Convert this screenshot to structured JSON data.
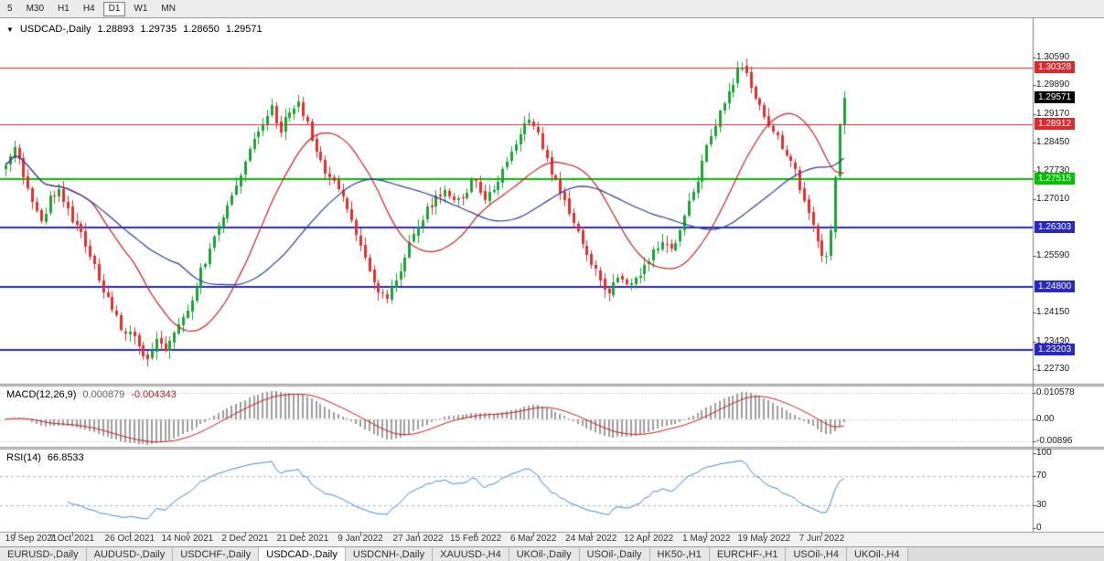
{
  "toolbar": {
    "timeframes": [
      {
        "label": "5",
        "active": false
      },
      {
        "label": "M30",
        "active": false
      },
      {
        "label": "H1",
        "active": false
      },
      {
        "label": "H4",
        "active": false
      },
      {
        "label": "D1",
        "active": true
      },
      {
        "label": "W1",
        "active": false
      },
      {
        "label": "MN",
        "active": false
      }
    ]
  },
  "chart": {
    "dropdown_icon": "▼",
    "title": {
      "symbol": "USDCAD-,Daily",
      "open": "1.28893",
      "high": "1.29735",
      "low": "1.28650",
      "close": "1.29571"
    },
    "price_axis_labels": [
      "1.30590",
      "1.29890",
      "1.29170",
      "1.28450",
      "1.27730",
      "1.27010",
      "1.25590",
      "1.24150",
      "1.23430",
      "1.22730"
    ],
    "levels": [
      {
        "price": 1.30328,
        "label": "1.30328",
        "color": "#d92b2b",
        "line_width": 1
      },
      {
        "price": 1.28912,
        "label": "1.28912",
        "color": "#d92b2b",
        "line_width": 1
      },
      {
        "price": 1.27515,
        "label": "1.27515",
        "color": "#00c300",
        "line_width": 2
      },
      {
        "price": 1.26303,
        "label": "1.26303",
        "color": "#2828c8",
        "line_width": 2
      },
      {
        "price": 1.248,
        "label": "1.24800",
        "color": "#2828c8",
        "line_width": 2
      },
      {
        "price": 1.23203,
        "label": "1.23203",
        "color": "#2828c8",
        "line_width": 2
      }
    ],
    "current_price": {
      "price": 1.29571,
      "label": "1.29571",
      "color": "#000000"
    }
  },
  "macd": {
    "label": "MACD(12,26,9)",
    "value_main": "0.000879",
    "value_signal": "-0.004343",
    "axis_labels": [
      "0.010578",
      "0.00",
      "-0.00896"
    ],
    "axis_values": [
      0.010578,
      0,
      -0.00896
    ]
  },
  "rsi": {
    "label": "RSI(14)",
    "value": "66.8533",
    "axis_labels": [
      "100",
      "70",
      "30",
      "0"
    ],
    "axis_values": [
      100,
      70,
      30,
      0
    ],
    "levels": [
      70,
      30
    ]
  },
  "dates": {
    "labels": [
      "19 Sep 2021",
      "7 Oct 2021",
      "26 Oct 2021",
      "14 Nov 2021",
      "2 Dec 2021",
      "21 Dec 2021",
      "9 Jan 2022",
      "27 Jan 2022",
      "15 Feb 2022",
      "6 Mar 2022",
      "24 Mar 2022",
      "12 Apr 2022",
      "1 May 2022",
      "19 May 2022",
      "7 Jun 2022"
    ],
    "candle_indices": [
      2,
      15,
      28,
      41,
      54,
      67,
      80,
      93,
      106,
      119,
      132,
      145,
      158,
      171,
      184
    ]
  },
  "tabs": [
    {
      "label": "EURUSD-,Daily",
      "active": false
    },
    {
      "label": "AUDUSD-,Daily",
      "active": false
    },
    {
      "label": "USDCHF-,Daily",
      "active": false
    },
    {
      "label": "USDCAD-,Daily",
      "active": true
    },
    {
      "label": "USDCNH-,Daily",
      "active": false
    },
    {
      "label": "XAUUSD-,H4",
      "active": false
    },
    {
      "label": "UKOil-,Daily",
      "active": false
    },
    {
      "label": "USOil-,Daily",
      "active": false
    },
    {
      "label": "HK50-,H1",
      "active": false
    },
    {
      "label": "EURCHF-,H1",
      "active": false
    },
    {
      "label": "USOil-,H4",
      "active": false
    },
    {
      "label": "UKOil-,H4",
      "active": false
    }
  ],
  "chart_data": {
    "type": "candlestick",
    "symbol": "USDCAD",
    "period": "Daily",
    "title": "USDCAD-,Daily 1.28893 1.29735 1.28650 1.29571",
    "candle_count": 190,
    "seed": 9,
    "y_range": [
      1.225,
      1.3135
    ],
    "last_candle": {
      "open": 1.28893,
      "high": 1.29735,
      "low": 1.2865,
      "close": 1.29571
    },
    "price_path": [
      [
        0,
        1.278
      ],
      [
        2,
        1.283
      ],
      [
        4,
        1.276
      ],
      [
        6,
        1.27
      ],
      [
        8,
        1.264
      ],
      [
        10,
        1.27
      ],
      [
        12,
        1.2725
      ],
      [
        15,
        1.2655
      ],
      [
        18,
        1.259
      ],
      [
        21,
        1.25
      ],
      [
        24,
        1.242
      ],
      [
        26,
        1.238
      ],
      [
        28,
        1.236
      ],
      [
        30,
        1.233
      ],
      [
        32,
        1.23
      ],
      [
        34,
        1.234
      ],
      [
        36,
        1.232
      ],
      [
        38,
        1.2365
      ],
      [
        41,
        1.242
      ],
      [
        44,
        1.252
      ],
      [
        47,
        1.26
      ],
      [
        50,
        1.268
      ],
      [
        52,
        1.273
      ],
      [
        54,
        1.279
      ],
      [
        56,
        1.285
      ],
      [
        58,
        1.29
      ],
      [
        60,
        1.293
      ],
      [
        62,
        1.288
      ],
      [
        64,
        1.2915
      ],
      [
        66,
        1.2945
      ],
      [
        68,
        1.289
      ],
      [
        70,
        1.282
      ],
      [
        72,
        1.277
      ],
      [
        74,
        1.274
      ],
      [
        76,
        1.27
      ],
      [
        78,
        1.265
      ],
      [
        80,
        1.259
      ],
      [
        82,
        1.252
      ],
      [
        84,
        1.247
      ],
      [
        86,
        1.245
      ],
      [
        88,
        1.2505
      ],
      [
        90,
        1.2555
      ],
      [
        93,
        1.264
      ],
      [
        96,
        1.269
      ],
      [
        99,
        1.272
      ],
      [
        102,
        1.2695
      ],
      [
        104,
        1.2725
      ],
      [
        106,
        1.2755
      ],
      [
        108,
        1.2705
      ],
      [
        110,
        1.2735
      ],
      [
        112,
        1.277
      ],
      [
        114,
        1.2815
      ],
      [
        116,
        1.2865
      ],
      [
        118,
        1.2905
      ],
      [
        120,
        1.286
      ],
      [
        122,
        1.28
      ],
      [
        124,
        1.2745
      ],
      [
        126,
        1.2695
      ],
      [
        128,
        1.2645
      ],
      [
        130,
        1.2595
      ],
      [
        132,
        1.254
      ],
      [
        134,
        1.2495
      ],
      [
        136,
        1.247
      ],
      [
        138,
        1.2505
      ],
      [
        140,
        1.248
      ],
      [
        142,
        1.2505
      ],
      [
        144,
        1.2535
      ],
      [
        146,
        1.2565
      ],
      [
        148,
        1.2595
      ],
      [
        150,
        1.258
      ],
      [
        152,
        1.2625
      ],
      [
        154,
        1.269
      ],
      [
        156,
        1.275
      ],
      [
        158,
        1.284
      ],
      [
        160,
        1.2895
      ],
      [
        162,
        1.2945
      ],
      [
        164,
        1.3
      ],
      [
        166,
        1.304
      ],
      [
        168,
        1.299
      ],
      [
        170,
        1.293
      ],
      [
        172,
        1.289
      ],
      [
        174,
        1.2855
      ],
      [
        176,
        1.282
      ],
      [
        178,
        1.277
      ],
      [
        180,
        1.2705
      ],
      [
        182,
        1.2645
      ],
      [
        184,
        1.2565
      ],
      [
        185,
        1.2555
      ],
      [
        186,
        1.262
      ],
      [
        187,
        1.276
      ],
      [
        188,
        1.289
      ],
      [
        189,
        1.29571
      ]
    ],
    "indicators": {
      "ma_fast": {
        "period": 20,
        "color": "#cc2020"
      },
      "ma_slow": {
        "period": 40,
        "color": "#2c3f99"
      },
      "macd_params": [
        12,
        26,
        9
      ],
      "rsi_period": 14
    },
    "colors": {
      "up": "#1da237",
      "down": "#df3030",
      "macd_hist": "#9e9e9e",
      "macd_signal": "#c02020",
      "rsi_line": "#4a86c8",
      "rsi_level": "#9db9d2",
      "grid_dotted": "#b8b8b8"
    }
  }
}
